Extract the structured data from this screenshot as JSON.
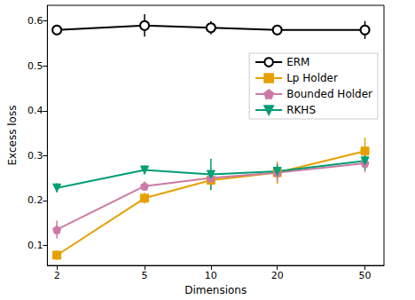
{
  "chart_data": {
    "type": "line",
    "x_label": "Dimensions",
    "y_label": "Excess loss",
    "log": "x",
    "grid": false,
    "legend": "right",
    "x": [
      2,
      5,
      10,
      20,
      50
    ],
    "xlim": [
      1.81,
      61
    ],
    "xticks": [
      2,
      5,
      10,
      20,
      50
    ],
    "ylim": [
      0.055,
      0.635
    ],
    "yticks": [
      0.1,
      0.2,
      0.3,
      0.4,
      0.5,
      0.6
    ],
    "series": [
      {
        "name": "ERM",
        "color": "#000000",
        "marker": "circle",
        "values": [
          0.58,
          0.59,
          0.585,
          0.58,
          0.58
        ],
        "errors": [
          0.01,
          0.025,
          0.015,
          0.01,
          0.02
        ]
      },
      {
        "name": "Lp Holder",
        "color": "#E69F00",
        "marker": "square",
        "values": [
          0.078,
          0.205,
          0.245,
          0.262,
          0.31
        ],
        "errors": [
          0.01,
          0.012,
          0.02,
          0.025,
          0.03
        ]
      },
      {
        "name": "Bounded Holder",
        "color": "#CC79A7",
        "marker": "pentagon",
        "values": [
          0.135,
          0.232,
          0.25,
          0.262,
          0.283
        ],
        "errors": [
          0.02,
          0.01,
          0.015,
          0.02,
          0.02
        ]
      },
      {
        "name": "RKHS",
        "color": "#009E73",
        "marker": "triangle_down",
        "values": [
          0.228,
          0.268,
          0.258,
          0.265,
          0.288
        ],
        "errors": [
          0.01,
          0.01,
          0.035,
          0.015,
          0.02
        ]
      }
    ]
  }
}
